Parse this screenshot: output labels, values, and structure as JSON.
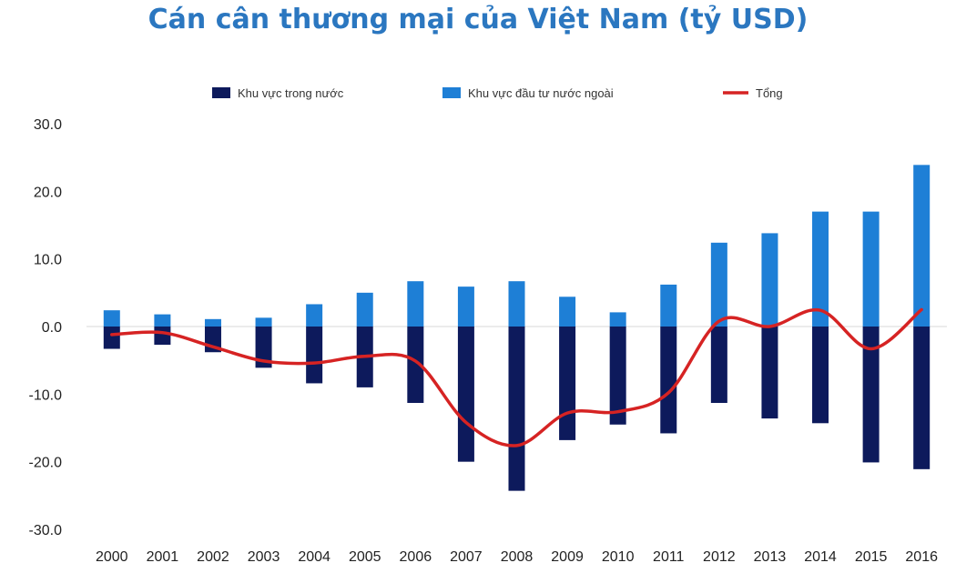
{
  "chart_data": {
    "type": "bar",
    "title": "Cán cân thương mại của Việt Nam (tỷ USD)",
    "categories": [
      "2000",
      "2001",
      "2002",
      "2003",
      "2004",
      "2005",
      "2006",
      "2007",
      "2008",
      "2009",
      "2010",
      "2011",
      "2012",
      "2013",
      "2014",
      "2015",
      "2016"
    ],
    "series": [
      {
        "name": "Khu vực trong nước",
        "type": "bar",
        "color": "#0d1a5c",
        "values": [
          -3.3,
          -2.7,
          -3.8,
          -6.1,
          -8.4,
          -9.0,
          -11.3,
          -20.0,
          -24.3,
          -16.8,
          -14.5,
          -15.8,
          -11.3,
          -13.6,
          -14.3,
          -20.1,
          -21.1
        ]
      },
      {
        "name": "Khu vực đầu tư nước ngoài",
        "type": "bar",
        "color": "#1e7fd6",
        "values": [
          2.4,
          1.8,
          1.1,
          1.3,
          3.3,
          5.0,
          6.7,
          5.9,
          6.7,
          4.4,
          2.1,
          6.2,
          12.4,
          13.8,
          17.0,
          17.0,
          23.9
        ]
      },
      {
        "name": "Tổng",
        "type": "line",
        "color": "#d62323",
        "values": [
          -1.2,
          -0.9,
          -3.0,
          -5.1,
          -5.4,
          -4.4,
          -5.1,
          -14.2,
          -17.6,
          -12.8,
          -12.6,
          -9.8,
          0.8,
          0.0,
          2.4,
          -3.3,
          2.5
        ]
      }
    ],
    "yticks": [
      "30.0",
      "20.0",
      "10.0",
      "0.0",
      "-10.0",
      "-20.0",
      "-30.0"
    ],
    "ylim": [
      -30,
      30
    ],
    "xlabel": "",
    "ylabel": "",
    "legend": "top",
    "grid": false
  }
}
